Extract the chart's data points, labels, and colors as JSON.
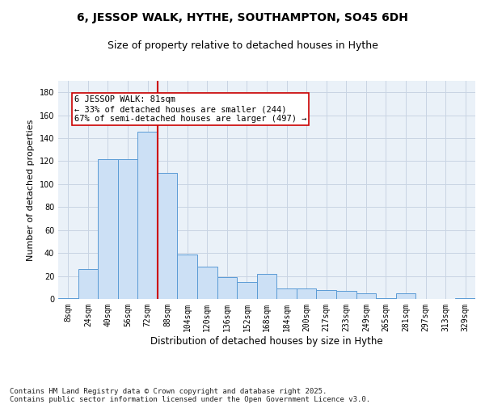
{
  "title1": "6, JESSOP WALK, HYTHE, SOUTHAMPTON, SO45 6DH",
  "title2": "Size of property relative to detached houses in Hythe",
  "xlabel": "Distribution of detached houses by size in Hythe",
  "ylabel": "Number of detached properties",
  "categories": [
    "8sqm",
    "24sqm",
    "40sqm",
    "56sqm",
    "72sqm",
    "88sqm",
    "104sqm",
    "120sqm",
    "136sqm",
    "152sqm",
    "168sqm",
    "184sqm",
    "200sqm",
    "217sqm",
    "233sqm",
    "249sqm",
    "265sqm",
    "281sqm",
    "297sqm",
    "313sqm",
    "329sqm"
  ],
  "values": [
    1,
    26,
    122,
    122,
    146,
    110,
    39,
    28,
    19,
    15,
    22,
    9,
    9,
    8,
    7,
    5,
    1,
    5,
    0,
    0,
    1
  ],
  "bar_color": "#cce0f5",
  "bar_edge_color": "#5b9bd5",
  "grid_color": "#c8d4e3",
  "background_color": "#eaf1f8",
  "vline_color": "#cc0000",
  "annotation_text": "6 JESSOP WALK: 81sqm\n← 33% of detached houses are smaller (244)\n67% of semi-detached houses are larger (497) →",
  "annotation_box_color": "#ffffff",
  "annotation_box_edge": "#cc0000",
  "ylim": [
    0,
    190
  ],
  "yticks": [
    0,
    20,
    40,
    60,
    80,
    100,
    120,
    140,
    160,
    180
  ],
  "footer": "Contains HM Land Registry data © Crown copyright and database right 2025.\nContains public sector information licensed under the Open Government Licence v3.0.",
  "title1_fontsize": 10,
  "title2_fontsize": 9,
  "xlabel_fontsize": 8.5,
  "ylabel_fontsize": 8,
  "tick_fontsize": 7,
  "footer_fontsize": 6.5
}
